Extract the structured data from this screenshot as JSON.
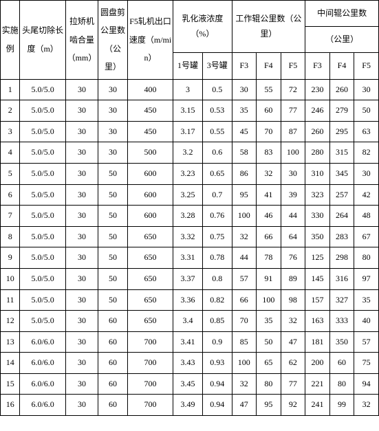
{
  "headers": {
    "row_idx": "实施例",
    "cut_len": "头尾切除长度（m）",
    "mesh": "拉矫机啮合量（mm）",
    "disc_km": "圆盘剪公里数（公里）",
    "f5_speed": "F5轧机出口速度（m/min）",
    "emul": "乳化液浓度（%）",
    "tank1": "1号罐",
    "tank3": "3号罐",
    "work_km": "工作辊公里数（公里）",
    "mid_km": "中间辊公里数",
    "mid_km_unit": "（公里）",
    "f3": "F3",
    "f4": "F4",
    "f5": "F5"
  },
  "rows": [
    {
      "n": "1",
      "len": "5.0/5.0",
      "mesh": "30",
      "disc": "30",
      "f5s": "400",
      "t1": "3",
      "t3": "0.5",
      "wf3": "30",
      "wf4": "55",
      "wf5": "72",
      "mf3": "230",
      "mf4": "260",
      "mf5": "30"
    },
    {
      "n": "2",
      "len": "5.0/5.0",
      "mesh": "30",
      "disc": "30",
      "f5s": "450",
      "t1": "3.15",
      "t3": "0.53",
      "wf3": "35",
      "wf4": "60",
      "wf5": "77",
      "mf3": "246",
      "mf4": "279",
      "mf5": "50"
    },
    {
      "n": "3",
      "len": "5.0/5.0",
      "mesh": "30",
      "disc": "30",
      "f5s": "450",
      "t1": "3.17",
      "t3": "0.55",
      "wf3": "45",
      "wf4": "70",
      "wf5": "87",
      "mf3": "260",
      "mf4": "295",
      "mf5": "63"
    },
    {
      "n": "4",
      "len": "5.0/5.0",
      "mesh": "30",
      "disc": "30",
      "f5s": "500",
      "t1": "3.2",
      "t3": "0.6",
      "wf3": "58",
      "wf4": "83",
      "wf5": "100",
      "mf3": "280",
      "mf4": "315",
      "mf5": "82"
    },
    {
      "n": "5",
      "len": "5.0/5.0",
      "mesh": "30",
      "disc": "50",
      "f5s": "600",
      "t1": "3.23",
      "t3": "0.65",
      "wf3": "86",
      "wf4": "32",
      "wf5": "30",
      "mf3": "310",
      "mf4": "345",
      "mf5": "30"
    },
    {
      "n": "6",
      "len": "5.0/5.0",
      "mesh": "30",
      "disc": "50",
      "f5s": "600",
      "t1": "3.25",
      "t3": "0.7",
      "wf3": "95",
      "wf4": "41",
      "wf5": "39",
      "mf3": "323",
      "mf4": "257",
      "mf5": "42"
    },
    {
      "n": "7",
      "len": "5.0/5.0",
      "mesh": "30",
      "disc": "50",
      "f5s": "600",
      "t1": "3.28",
      "t3": "0.76",
      "wf3": "100",
      "wf4": "46",
      "wf5": "44",
      "mf3": "330",
      "mf4": "264",
      "mf5": "48"
    },
    {
      "n": "8",
      "len": "5.0/5.0",
      "mesh": "30",
      "disc": "50",
      "f5s": "650",
      "t1": "3.32",
      "t3": "0.75",
      "wf3": "32",
      "wf4": "66",
      "wf5": "64",
      "mf3": "350",
      "mf4": "283",
      "mf5": "67"
    },
    {
      "n": "9",
      "len": "5.0/5.0",
      "mesh": "30",
      "disc": "50",
      "f5s": "650",
      "t1": "3.31",
      "t3": "0.78",
      "wf3": "44",
      "wf4": "78",
      "wf5": "76",
      "mf3": "125",
      "mf4": "298",
      "mf5": "80"
    },
    {
      "n": "10",
      "len": "5.0/5.0",
      "mesh": "30",
      "disc": "50",
      "f5s": "650",
      "t1": "3.37",
      "t3": "0.8",
      "wf3": "57",
      "wf4": "91",
      "wf5": "89",
      "mf3": "145",
      "mf4": "316",
      "mf5": "97"
    },
    {
      "n": "11",
      "len": "5.0/5.0",
      "mesh": "30",
      "disc": "50",
      "f5s": "650",
      "t1": "3.36",
      "t3": "0.82",
      "wf3": "66",
      "wf4": "100",
      "wf5": "98",
      "mf3": "157",
      "mf4": "327",
      "mf5": "35"
    },
    {
      "n": "12",
      "len": "5.0/5.0",
      "mesh": "30",
      "disc": "60",
      "f5s": "650",
      "t1": "3.4",
      "t3": "0.85",
      "wf3": "70",
      "wf4": "35",
      "wf5": "32",
      "mf3": "163",
      "mf4": "333",
      "mf5": "40"
    },
    {
      "n": "13",
      "len": "6.0/6.0",
      "mesh": "30",
      "disc": "60",
      "f5s": "700",
      "t1": "3.41",
      "t3": "0.9",
      "wf3": "85",
      "wf4": "50",
      "wf5": "47",
      "mf3": "181",
      "mf4": "350",
      "mf5": "57"
    },
    {
      "n": "14",
      "len": "6.0/6.0",
      "mesh": "30",
      "disc": "60",
      "f5s": "700",
      "t1": "3.43",
      "t3": "0.93",
      "wf3": "100",
      "wf4": "65",
      "wf5": "62",
      "mf3": "200",
      "mf4": "60",
      "mf5": "75"
    },
    {
      "n": "15",
      "len": "6.0/6.0",
      "mesh": "30",
      "disc": "60",
      "f5s": "700",
      "t1": "3.45",
      "t3": "0.94",
      "wf3": "32",
      "wf4": "80",
      "wf5": "77",
      "mf3": "221",
      "mf4": "80",
      "mf5": "94"
    },
    {
      "n": "16",
      "len": "6.0/6.0",
      "mesh": "30",
      "disc": "60",
      "f5s": "700",
      "t1": "3.49",
      "t3": "0.94",
      "wf3": "47",
      "wf4": "95",
      "wf5": "92",
      "mf3": "241",
      "mf4": "99",
      "mf5": "32"
    }
  ]
}
